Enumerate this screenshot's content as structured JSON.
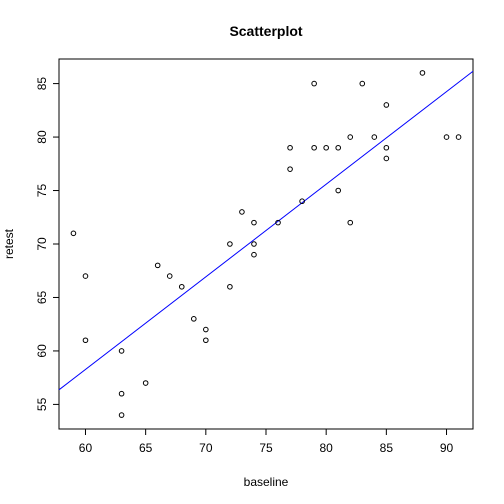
{
  "chart_data": {
    "type": "scatter",
    "title": "Scatterplot",
    "xlabel": "baseline",
    "ylabel": "retest",
    "xlim": [
      57.8,
      92.2
    ],
    "ylim": [
      52.7,
      87.3
    ],
    "xticks": [
      60,
      65,
      70,
      75,
      80,
      85,
      90
    ],
    "yticks": [
      55,
      60,
      65,
      70,
      75,
      80,
      85
    ],
    "grid": false,
    "legend": "none",
    "point_color": "#000000",
    "line_color": "#0000ff",
    "fit_line": {
      "intercept": 6.31,
      "slope": 0.866
    },
    "points": [
      {
        "x": 59,
        "y": 71
      },
      {
        "x": 60,
        "y": 67
      },
      {
        "x": 60,
        "y": 61
      },
      {
        "x": 63,
        "y": 60
      },
      {
        "x": 63,
        "y": 56
      },
      {
        "x": 63,
        "y": 54
      },
      {
        "x": 65,
        "y": 57
      },
      {
        "x": 66,
        "y": 68
      },
      {
        "x": 67,
        "y": 67
      },
      {
        "x": 68,
        "y": 66
      },
      {
        "x": 69,
        "y": 63
      },
      {
        "x": 70,
        "y": 62
      },
      {
        "x": 70,
        "y": 61
      },
      {
        "x": 72,
        "y": 70
      },
      {
        "x": 72,
        "y": 66
      },
      {
        "x": 73,
        "y": 73
      },
      {
        "x": 74,
        "y": 72
      },
      {
        "x": 74,
        "y": 70
      },
      {
        "x": 74,
        "y": 69
      },
      {
        "x": 76,
        "y": 72
      },
      {
        "x": 77,
        "y": 79
      },
      {
        "x": 77,
        "y": 77
      },
      {
        "x": 78,
        "y": 74
      },
      {
        "x": 79,
        "y": 85
      },
      {
        "x": 79,
        "y": 79
      },
      {
        "x": 80,
        "y": 79
      },
      {
        "x": 81,
        "y": 79
      },
      {
        "x": 81,
        "y": 75
      },
      {
        "x": 82,
        "y": 80
      },
      {
        "x": 82,
        "y": 72
      },
      {
        "x": 83,
        "y": 85
      },
      {
        "x": 84,
        "y": 80
      },
      {
        "x": 85,
        "y": 83
      },
      {
        "x": 85,
        "y": 79
      },
      {
        "x": 85,
        "y": 78
      },
      {
        "x": 88,
        "y": 86
      },
      {
        "x": 90,
        "y": 80
      },
      {
        "x": 91,
        "y": 80
      }
    ]
  }
}
